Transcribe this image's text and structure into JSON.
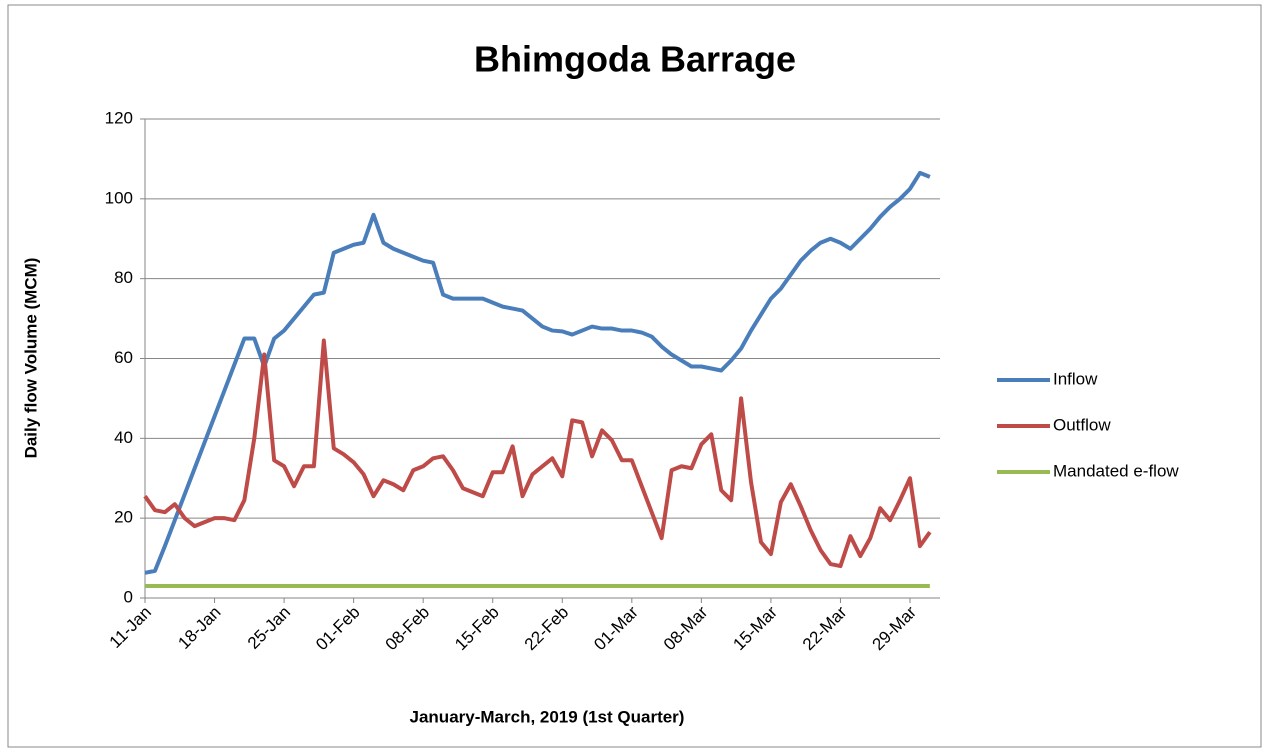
{
  "chart_data": {
    "type": "line",
    "title": "Bhimgoda Barrage",
    "x_label": "January-March, 2019 (1st Quarter)",
    "y_label": "Daily flow Volume (MCM)",
    "categories": [
      "11-Jan",
      null,
      null,
      null,
      null,
      null,
      null,
      "18-Jan",
      null,
      null,
      null,
      null,
      null,
      null,
      "25-Jan",
      null,
      null,
      null,
      null,
      null,
      null,
      "01-Feb",
      null,
      null,
      null,
      null,
      null,
      null,
      "08-Feb",
      null,
      null,
      null,
      null,
      null,
      null,
      "15-Feb",
      null,
      null,
      null,
      null,
      null,
      null,
      "22-Feb",
      null,
      null,
      null,
      null,
      null,
      null,
      "01-Mar",
      null,
      null,
      null,
      null,
      null,
      null,
      "08-Mar",
      null,
      null,
      null,
      null,
      null,
      null,
      "15-Mar",
      null,
      null,
      null,
      null,
      null,
      null,
      "22-Mar",
      null,
      null,
      null,
      null,
      null,
      null,
      "29-Mar",
      null,
      null
    ],
    "series": [
      {
        "name": "Inflow",
        "color": "#4a7ebb",
        "values": [
          6.3,
          6.8,
          13,
          19.5,
          26,
          32.5,
          39,
          45.5,
          52,
          58.5,
          65,
          65,
          58,
          65,
          67,
          70,
          73,
          76,
          76.5,
          86.5,
          87.5,
          88.5,
          89,
          96,
          89,
          87.5,
          86.5,
          85.5,
          84.5,
          84,
          76,
          75,
          75,
          75,
          75,
          74,
          73,
          72.5,
          72,
          70,
          68,
          67,
          66.8,
          66,
          67,
          68,
          67.5,
          67.5,
          67,
          67,
          66.5,
          65.5,
          63,
          61,
          59.5,
          58,
          58,
          57.5,
          57,
          59.5,
          62.5,
          67,
          71,
          75,
          77.5,
          81,
          84.5,
          87,
          89,
          90,
          89,
          87.5,
          90,
          92.5,
          95.5,
          98,
          100,
          102.5,
          106.5,
          105.5
        ]
      },
      {
        "name": "Outflow",
        "color": "#be4b48",
        "values": [
          25.5,
          22,
          21.5,
          23.5,
          20,
          18,
          19,
          20,
          20,
          19.5,
          24.5,
          40,
          61,
          34.5,
          33,
          28,
          33,
          33,
          64.5,
          37.5,
          36,
          34,
          31,
          25.5,
          29.5,
          28.5,
          27,
          32,
          33,
          35,
          35.5,
          32,
          27.5,
          26.5,
          25.5,
          31.5,
          31.5,
          38,
          25.5,
          31,
          33,
          35,
          30.5,
          44.5,
          44,
          35.5,
          42,
          39.5,
          34.5,
          34.5,
          28,
          21.5,
          15,
          32,
          33,
          32.5,
          38.5,
          41,
          27,
          24.5,
          50,
          29,
          14,
          11,
          24,
          28.5,
          23,
          17,
          12,
          8.5,
          8,
          15.5,
          10.5,
          15,
          22.5,
          19.5,
          24.5,
          30,
          13,
          16.5
        ]
      },
      {
        "name": "Mandated e-flow",
        "color": "#98b954",
        "values": [
          3,
          3,
          3,
          3,
          3,
          3,
          3,
          3,
          3,
          3,
          3,
          3,
          3,
          3,
          3,
          3,
          3,
          3,
          3,
          3,
          3,
          3,
          3,
          3,
          3,
          3,
          3,
          3,
          3,
          3,
          3,
          3,
          3,
          3,
          3,
          3,
          3,
          3,
          3,
          3,
          3,
          3,
          3,
          3,
          3,
          3,
          3,
          3,
          3,
          3,
          3,
          3,
          3,
          3,
          3,
          3,
          3,
          3,
          3,
          3,
          3,
          3,
          3,
          3,
          3,
          3,
          3,
          3,
          3,
          3,
          3,
          3,
          3,
          3,
          3,
          3,
          3,
          3,
          3,
          3
        ]
      }
    ],
    "ylim": [
      0,
      120
    ],
    "yticks": [
      0,
      20,
      40,
      60,
      80,
      100,
      120
    ],
    "grid": true,
    "legend": "right"
  }
}
